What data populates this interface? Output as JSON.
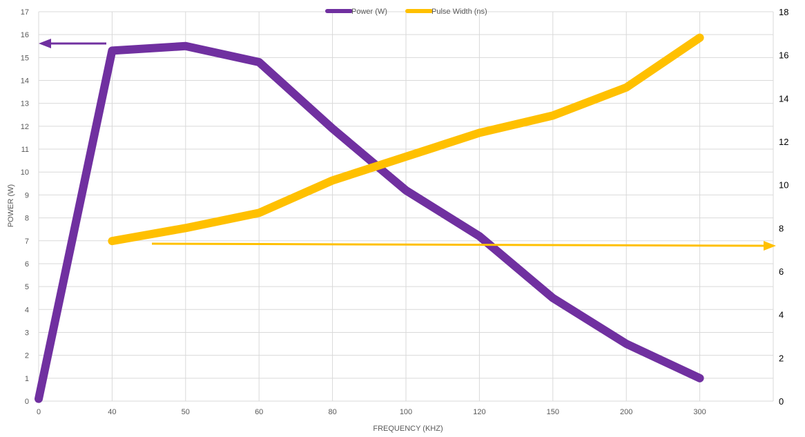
{
  "chart_data": {
    "type": "line",
    "categories": [
      "0",
      "40",
      "50",
      "60",
      "80",
      "100",
      "120",
      "150",
      "200",
      "300"
    ],
    "xlabel": "FREQUENCY (KHZ)",
    "ylabel": "POWER (W)",
    "ylim": [
      0,
      17
    ],
    "y2lim": [
      0,
      18
    ],
    "y_ticks": [
      "0",
      "1",
      "2",
      "3",
      "4",
      "5",
      "6",
      "7",
      "8",
      "9",
      "10",
      "11",
      "12",
      "13",
      "14",
      "15",
      "16",
      "17"
    ],
    "y2_ticks": [
      "0",
      "2",
      "4",
      "6",
      "8",
      "10",
      "12",
      "14",
      "16",
      "18"
    ],
    "grid": true,
    "legend_position": "top",
    "series": [
      {
        "name": "Power (W)",
        "axis": "left",
        "color": "#7030a0",
        "values": [
          0.1,
          15.3,
          15.5,
          14.8,
          11.9,
          9.2,
          7.2,
          4.5,
          2.5,
          1.0
        ]
      },
      {
        "name": "Pulse Width (ns)",
        "axis": "right",
        "color": "#ffc000",
        "values": [
          null,
          7.4,
          8.0,
          8.7,
          10.2,
          11.3,
          12.4,
          13.2,
          14.5,
          16.8
        ]
      }
    ],
    "annotations": [
      {
        "type": "arrow",
        "direction": "left",
        "color": "#7030a0",
        "meaning": "power series reads from left axis"
      },
      {
        "type": "arrow",
        "direction": "right",
        "color": "#ffc000",
        "meaning": "pulse width series reads from right axis"
      }
    ]
  }
}
